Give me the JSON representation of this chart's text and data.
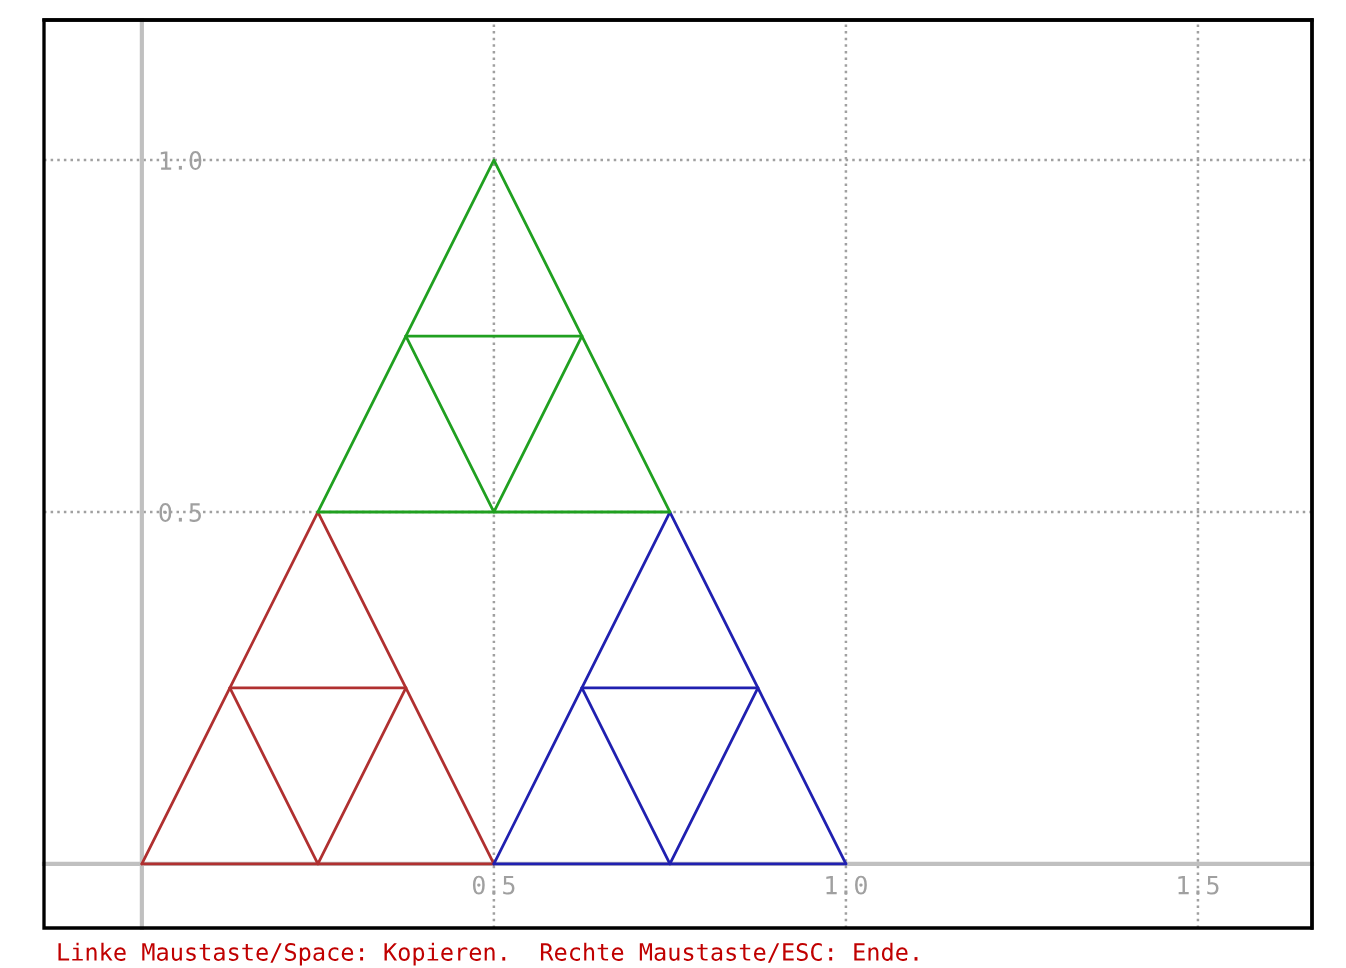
{
  "chart_data": {
    "type": "line",
    "series": [
      {
        "color": "#b03030",
        "x": [
          0,
          0.125,
          0.25,
          0.375,
          0.5
        ],
        "values": [
          0,
          0.25,
          0.5,
          0.25,
          0
        ]
      },
      {
        "color": "#b03030",
        "x": [
          0.125,
          0.25,
          0.375
        ],
        "values": [
          0.25,
          0,
          0.25
        ]
      },
      {
        "color": "#b03030",
        "x": [
          0,
          0.25,
          0.5
        ],
        "values": [
          0,
          0,
          0
        ]
      },
      {
        "color": "#b03030",
        "x": [
          0.125,
          0.375
        ],
        "values": [
          0.25,
          0.25
        ]
      },
      {
        "color": "#2020b0",
        "x": [
          0.5,
          0.625,
          0.75,
          0.875,
          1.0
        ],
        "values": [
          0,
          0.25,
          0.5,
          0.25,
          0
        ]
      },
      {
        "color": "#2020b0",
        "x": [
          0.625,
          0.75,
          0.875
        ],
        "values": [
          0.25,
          0,
          0.25
        ]
      },
      {
        "color": "#2020b0",
        "x": [
          0.5,
          0.75,
          1.0
        ],
        "values": [
          0,
          0,
          0
        ]
      },
      {
        "color": "#2020b0",
        "x": [
          0.625,
          0.875
        ],
        "values": [
          0.25,
          0.25
        ]
      },
      {
        "color": "#20a020",
        "x": [
          0.25,
          0.375,
          0.5,
          0.625,
          0.75
        ],
        "values": [
          0.5,
          0.75,
          1.0,
          0.75,
          0.5
        ]
      },
      {
        "color": "#20a020",
        "x": [
          0.375,
          0.5,
          0.625
        ],
        "values": [
          0.75,
          0.5,
          0.75
        ]
      },
      {
        "color": "#20a020",
        "x": [
          0.25,
          0.5,
          0.75
        ],
        "values": [
          0.5,
          0.5,
          0.5
        ]
      },
      {
        "color": "#20a020",
        "x": [
          0.375,
          0.625
        ],
        "values": [
          0.75,
          0.75
        ]
      }
    ],
    "xlim": [
      -0.139,
      1.662
    ],
    "ylim": [
      -0.091,
      1.199
    ],
    "xticks": [
      {
        "value": 0.5,
        "label": "0.5"
      },
      {
        "value": 1,
        "label": "1.0"
      },
      {
        "value": 1.5,
        "label": "1.5"
      }
    ],
    "yticks": [
      {
        "value": 0.5,
        "label": "0.5"
      },
      {
        "value": 1,
        "label": "1.0"
      }
    ],
    "grid": true,
    "marker": "none",
    "line_style": "solid",
    "annotations": [
      "Linke Maustaste/Space: Kopieren.  Rechte Maustaste/ESC: Ende."
    ]
  }
}
